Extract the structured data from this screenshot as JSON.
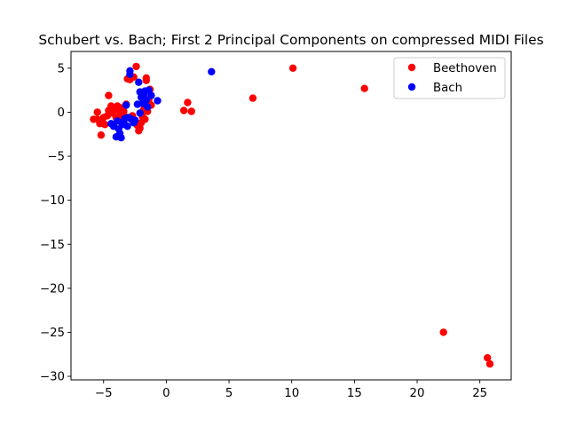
{
  "chart_data": {
    "type": "scatter",
    "title": "Schubert vs. Bach; First 2 Principal Components on compressed MIDI Files",
    "xlabel": "",
    "ylabel": "",
    "xlim": [
      -7.6,
      27.5
    ],
    "ylim": [
      -30.4,
      6.9
    ],
    "xticks": [
      -5,
      0,
      5,
      10,
      15,
      20,
      25
    ],
    "yticks": [
      5,
      0,
      -5,
      -10,
      -15,
      -20,
      -25,
      -30
    ],
    "xtick_labels": [
      "−5",
      "0",
      "5",
      "10",
      "15",
      "20",
      "25"
    ],
    "ytick_labels": [
      "5",
      "0",
      "−5",
      "−10",
      "−15",
      "−20",
      "−25",
      "−30"
    ],
    "grid": false,
    "legend_position": "top-right",
    "series": [
      {
        "name": "Beethoven",
        "color": "#ff0000",
        "points": [
          [
            -5.8,
            -0.8
          ],
          [
            -5.5,
            0.0
          ],
          [
            -5.5,
            -0.8
          ],
          [
            -5.3,
            -1.3
          ],
          [
            -5.1,
            -1.1
          ],
          [
            -5.0,
            -0.6
          ],
          [
            -5.2,
            -2.6
          ],
          [
            -4.9,
            -1.4
          ],
          [
            -4.7,
            -0.4
          ],
          [
            -4.6,
            0.2
          ],
          [
            -4.6,
            1.9
          ],
          [
            -4.4,
            0.7
          ],
          [
            -4.3,
            -0.1
          ],
          [
            -4.2,
            0.3
          ],
          [
            -4.0,
            -0.6
          ],
          [
            -3.9,
            0.7
          ],
          [
            -3.8,
            0.2
          ],
          [
            -3.7,
            -0.4
          ],
          [
            -3.6,
            -0.9
          ],
          [
            -3.5,
            0.5
          ],
          [
            -3.4,
            0.1
          ],
          [
            -3.3,
            -0.5
          ],
          [
            -3.2,
            0.9
          ],
          [
            -3.1,
            3.8
          ],
          [
            -2.9,
            3.7
          ],
          [
            -2.7,
            -0.4
          ],
          [
            -2.6,
            4.0
          ],
          [
            -2.5,
            -1.1
          ],
          [
            -2.4,
            5.2
          ],
          [
            -2.3,
            -1.5
          ],
          [
            -2.2,
            -2.1
          ],
          [
            -2.1,
            -1.8
          ],
          [
            -2.0,
            -1.2
          ],
          [
            -1.9,
            -0.5
          ],
          [
            -1.8,
            0.3
          ],
          [
            -1.7,
            -0.8
          ],
          [
            -1.6,
            3.6
          ],
          [
            -1.6,
            3.9
          ],
          [
            -1.5,
            0.1
          ],
          [
            -1.4,
            1.4
          ],
          [
            -1.3,
            2.6
          ],
          [
            -1.2,
            0.8
          ],
          [
            1.4,
            0.2
          ],
          [
            1.7,
            1.1
          ],
          [
            2.0,
            0.1
          ],
          [
            6.9,
            1.6
          ],
          [
            10.1,
            5.0
          ],
          [
            15.8,
            2.7
          ],
          [
            22.1,
            -25.0
          ],
          [
            25.6,
            -27.9
          ],
          [
            25.8,
            -28.6
          ]
        ]
      },
      {
        "name": "Bach",
        "color": "#0000ff",
        "points": [
          [
            -4.4,
            -1.3
          ],
          [
            -4.2,
            -1.6
          ],
          [
            -4.0,
            -2.8
          ],
          [
            -3.9,
            -1.0
          ],
          [
            -3.8,
            -1.9
          ],
          [
            -3.7,
            -2.4
          ],
          [
            -3.6,
            -2.9
          ],
          [
            -3.5,
            -1.4
          ],
          [
            -3.4,
            -1.1
          ],
          [
            -3.3,
            -0.7
          ],
          [
            -3.2,
            0.8
          ],
          [
            -3.1,
            -1.6
          ],
          [
            -3.0,
            -0.6
          ],
          [
            -2.9,
            4.3
          ],
          [
            -2.9,
            4.7
          ],
          [
            -2.8,
            -0.8
          ],
          [
            -2.6,
            -1.2
          ],
          [
            -2.5,
            -0.9
          ],
          [
            -2.3,
            0.9
          ],
          [
            -2.2,
            3.4
          ],
          [
            -2.1,
            2.3
          ],
          [
            -2.1,
            -0.1
          ],
          [
            -2.0,
            1.7
          ],
          [
            -1.9,
            1.0
          ],
          [
            -1.8,
            2.0
          ],
          [
            -1.7,
            2.4
          ],
          [
            -1.6,
            1.4
          ],
          [
            -1.5,
            0.6
          ],
          [
            -1.4,
            2.5
          ],
          [
            -1.2,
            1.9
          ],
          [
            -0.7,
            1.3
          ],
          [
            3.6,
            4.6
          ]
        ]
      }
    ]
  }
}
